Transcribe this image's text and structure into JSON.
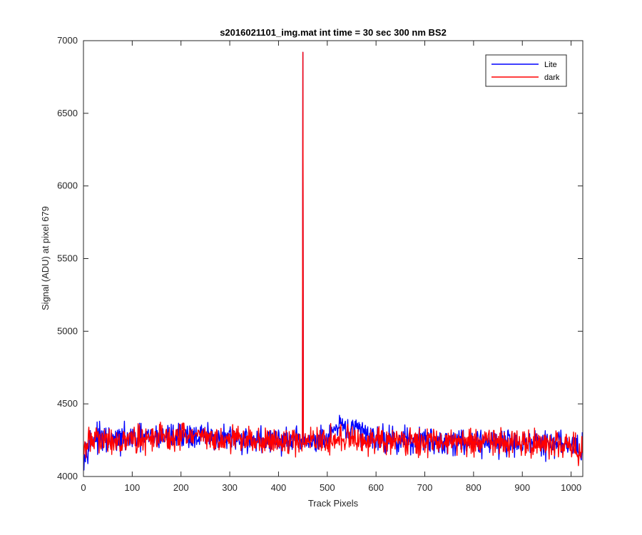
{
  "chart_data": {
    "type": "line",
    "title": "s2016021101_img.mat int time = 30 sec  300 nm BS2",
    "xlabel": "Track Pixels",
    "ylabel": "Signal (ADU) at pixel 679",
    "xlim": [
      0,
      1024
    ],
    "ylim": [
      4000,
      7000
    ],
    "xticks": [
      0,
      100,
      200,
      300,
      400,
      500,
      600,
      700,
      800,
      900,
      1000
    ],
    "yticks": [
      4000,
      4500,
      5000,
      5500,
      6000,
      6500,
      7000
    ],
    "grid": false,
    "legend_position": "top-right",
    "series": [
      {
        "name": "Lite",
        "color": "#0000ff",
        "x": [
          0,
          10,
          25,
          50,
          75,
          100,
          125,
          150,
          175,
          200,
          225,
          250,
          275,
          300,
          325,
          350,
          375,
          400,
          425,
          449,
          450,
          451,
          452,
          460,
          475,
          500,
          515,
          525,
          540,
          560,
          580,
          600,
          625,
          650,
          675,
          700,
          725,
          750,
          775,
          800,
          825,
          850,
          875,
          900,
          925,
          950,
          975,
          1000,
          1010,
          1020,
          1023
        ],
        "y": [
          4130,
          4230,
          4270,
          4240,
          4250,
          4260,
          4265,
          4270,
          4275,
          4285,
          4280,
          4270,
          4265,
          4260,
          4255,
          4250,
          4245,
          4250,
          4240,
          4245,
          6920,
          4260,
          4245,
          4240,
          4240,
          4250,
          4300,
          4335,
          4330,
          4320,
          4300,
          4265,
          4255,
          4250,
          4250,
          4250,
          4245,
          4245,
          4245,
          4240,
          4240,
          4240,
          4235,
          4230,
          4230,
          4225,
          4225,
          4220,
          4215,
          4150,
          4210
        ]
      },
      {
        "name": "dark",
        "color": "#ff0000",
        "x": [
          0,
          10,
          25,
          50,
          75,
          100,
          125,
          150,
          175,
          200,
          225,
          250,
          275,
          300,
          325,
          350,
          375,
          400,
          425,
          449,
          450,
          451,
          452,
          460,
          475,
          500,
          515,
          525,
          540,
          560,
          580,
          600,
          625,
          650,
          675,
          700,
          725,
          750,
          775,
          800,
          825,
          850,
          875,
          900,
          925,
          950,
          975,
          1000,
          1010,
          1020,
          1023
        ],
        "y": [
          4150,
          4240,
          4270,
          4240,
          4250,
          4255,
          4260,
          4265,
          4270,
          4280,
          4275,
          4265,
          4260,
          4255,
          4255,
          4250,
          4250,
          4245,
          4240,
          4245,
          6920,
          4255,
          4240,
          4245,
          4250,
          4250,
          4260,
          4255,
          4250,
          4250,
          4250,
          4250,
          4250,
          4250,
          4250,
          4245,
          4245,
          4245,
          4245,
          4240,
          4240,
          4240,
          4235,
          4235,
          4230,
          4230,
          4225,
          4220,
          4220,
          4160,
          4200
        ]
      }
    ],
    "noise_amplitude": 45
  }
}
